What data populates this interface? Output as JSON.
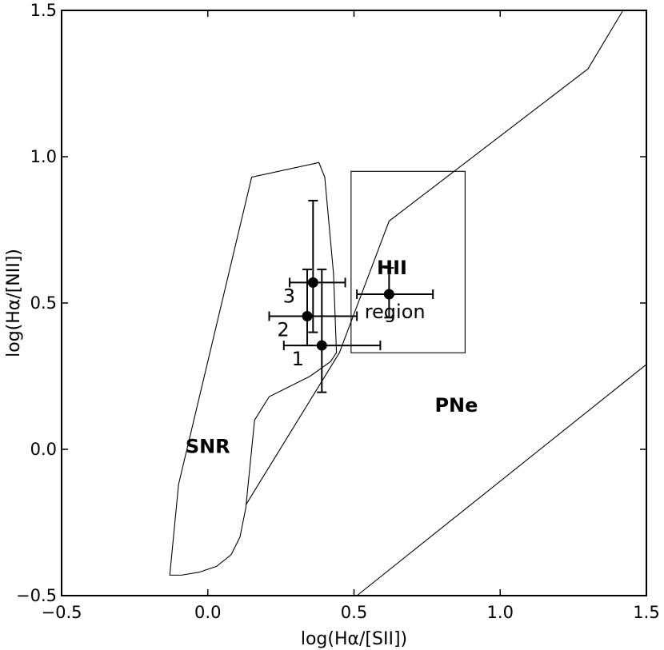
{
  "chart_data": {
    "type": "scatter",
    "xlabel": "log(Hα/[SII])",
    "ylabel": "log(Hα/[NII])",
    "xlim": [
      -0.5,
      1.5
    ],
    "ylim": [
      -0.5,
      1.5
    ],
    "xticks": [
      -0.5,
      0.0,
      0.5,
      1.0,
      1.5
    ],
    "yticks": [
      -0.5,
      0.0,
      0.5,
      1.0,
      1.5
    ],
    "xtick_labels": [
      "−0.5",
      "0.0",
      "0.5",
      "1.0",
      "1.5"
    ],
    "ytick_labels": [
      "−0.5",
      "0.0",
      "0.5",
      "1.0",
      "1.5"
    ],
    "grid": false,
    "points": [
      {
        "label": "1",
        "x": 0.39,
        "y": 0.355,
        "xerr": [
          0.13,
          0.2
        ],
        "yerr": [
          0.16,
          0.26
        ]
      },
      {
        "label": "2",
        "x": 0.34,
        "y": 0.455,
        "xerr": [
          0.13,
          0.17
        ],
        "yerr": [
          0.1,
          0.16
        ]
      },
      {
        "label": "3",
        "x": 0.36,
        "y": 0.57,
        "xerr": [
          0.08,
          0.11
        ],
        "yerr": [
          0.17,
          0.28
        ]
      },
      {
        "label": "",
        "x": 0.62,
        "y": 0.53,
        "xerr": [
          0.11,
          0.15
        ],
        "yerr": [
          0.08,
          0.09
        ]
      }
    ],
    "regions": {
      "snr": {
        "label": "SNR",
        "label_pos": [
          0.0,
          0.01
        ],
        "polygon": [
          [
            -0.13,
            -0.43
          ],
          [
            -0.09,
            -0.43
          ],
          [
            -0.03,
            -0.42
          ],
          [
            0.03,
            -0.4
          ],
          [
            0.08,
            -0.36
          ],
          [
            0.11,
            -0.3
          ],
          [
            0.13,
            -0.2
          ],
          [
            0.16,
            0.1
          ],
          [
            0.21,
            0.18
          ],
          [
            0.35,
            0.25
          ],
          [
            0.42,
            0.3
          ],
          [
            0.44,
            0.33
          ],
          [
            0.43,
            0.6
          ],
          [
            0.4,
            0.93
          ],
          [
            0.38,
            0.98
          ],
          [
            0.15,
            0.93
          ],
          [
            -0.1,
            -0.12
          ],
          [
            -0.13,
            -0.43
          ]
        ]
      },
      "hii": {
        "label": "HII",
        "sublabel": "region",
        "label_pos": [
          0.63,
          0.62
        ],
        "sublabel_pos": [
          0.64,
          0.47
        ],
        "box": [
          0.49,
          0.88,
          0.33,
          0.95
        ]
      },
      "pne": {
        "label": "PNe",
        "label_pos": [
          0.85,
          0.15
        ]
      }
    },
    "boundary_lines": [
      {
        "name": "upper-boundary",
        "points": [
          [
            0.13,
            -0.19
          ],
          [
            0.45,
            0.33
          ],
          [
            0.62,
            0.78
          ],
          [
            1.3,
            1.3
          ],
          [
            1.42,
            1.5
          ]
        ]
      },
      {
        "name": "lower-boundary",
        "points": [
          [
            0.51,
            -0.5
          ],
          [
            1.5,
            0.29
          ]
        ]
      }
    ]
  }
}
